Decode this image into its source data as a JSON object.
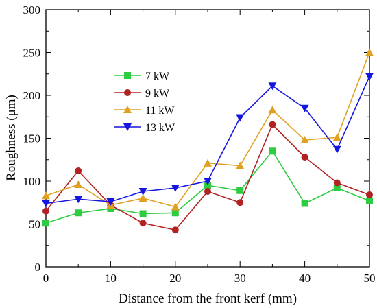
{
  "chart_data": {
    "type": "line",
    "title": "",
    "xlabel": "Distance from the front kerf (mm)",
    "ylabel": "Roughness (μm)",
    "xlim": [
      0,
      50
    ],
    "ylim": [
      0,
      300
    ],
    "x_ticks": [
      "0",
      "10",
      "20",
      "30",
      "40",
      "50"
    ],
    "y_ticks": [
      "0",
      "50",
      "100",
      "150",
      "200",
      "250",
      "300"
    ],
    "grid": false,
    "legend_position": "center-left",
    "x": [
      0,
      5,
      10,
      15,
      20,
      25,
      30,
      35,
      40,
      45,
      50
    ],
    "series": [
      {
        "name": "7 kW",
        "color": "#2ecc40",
        "marker": "square",
        "values": [
          51,
          63,
          68,
          62,
          63,
          95,
          89,
          135,
          74,
          92,
          77
        ]
      },
      {
        "name": "9 kW",
        "color": "#b22222",
        "marker": "circle",
        "values": [
          65,
          112,
          72,
          51,
          43,
          88,
          75,
          166,
          128,
          98,
          84
        ]
      },
      {
        "name": "11 kW",
        "color": "#e0a020",
        "marker": "triangle-up",
        "values": [
          83,
          96,
          72,
          80,
          70,
          121,
          118,
          183,
          148,
          151,
          250
        ]
      },
      {
        "name": "13 kW",
        "color": "#1515e0",
        "marker": "triangle-down",
        "values": [
          74,
          79,
          76,
          88,
          92,
          100,
          174,
          211,
          185,
          137,
          222
        ]
      }
    ]
  }
}
